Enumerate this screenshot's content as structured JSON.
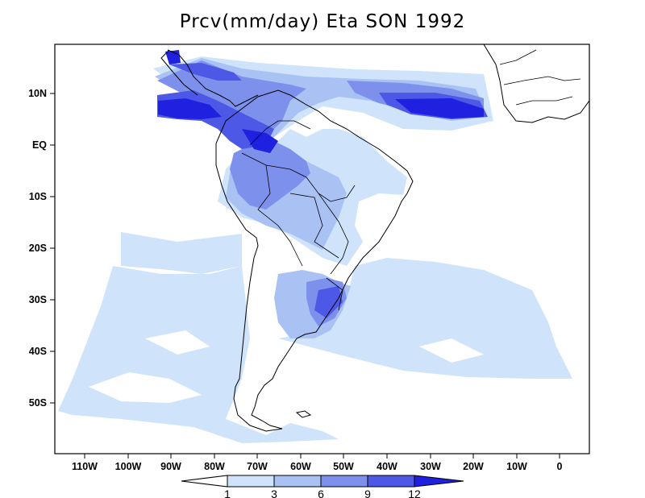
{
  "map": {
    "title": "Prcv(mm/day) Eta SON 1992",
    "lat_labels": [
      "10N",
      "EQ",
      "10S",
      "20S",
      "30S",
      "40S",
      "50S"
    ],
    "lon_labels": [
      "110W",
      "100W",
      "90W",
      "80W",
      "70W",
      "60W",
      "50W",
      "40W",
      "30W",
      "20W",
      "10W",
      "0"
    ]
  },
  "colorbar": {
    "levels": [
      "1",
      "3",
      "6",
      "9",
      "12"
    ],
    "colors": [
      "#ffffff",
      "#cfe4fa",
      "#a9c2f3",
      "#7d91ec",
      "#4e58e6",
      "#2020e0"
    ]
  },
  "palette": {
    "lev1": "#cfe4fa",
    "lev2": "#a9c2f3",
    "lev3": "#7d91ec",
    "lev4": "#4e58e6",
    "lev5": "#2020e0"
  }
}
